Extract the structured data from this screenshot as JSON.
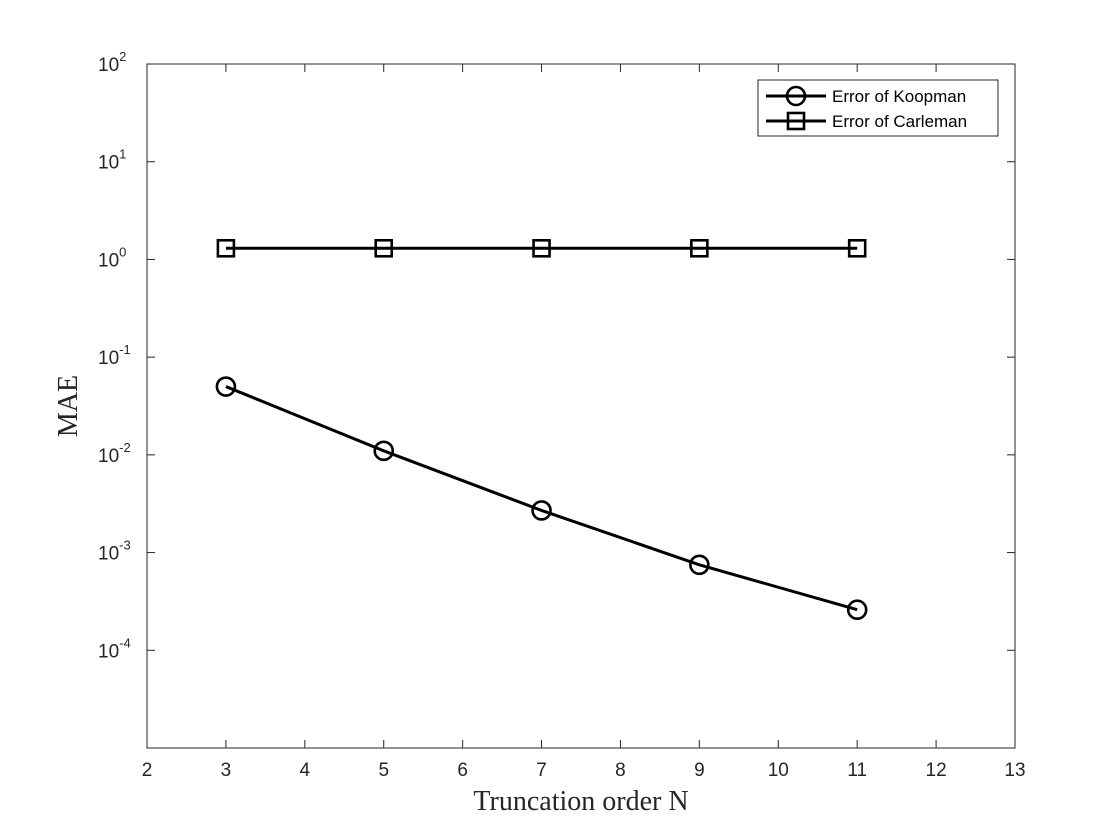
{
  "chart_data": {
    "type": "line",
    "title": "",
    "xlabel": "Truncation order N",
    "ylabel": "MAE",
    "xlim": [
      2,
      13
    ],
    "ylim": [
      1e-05,
      100
    ],
    "yscale": "log",
    "x_ticks": [
      2,
      3,
      4,
      5,
      6,
      7,
      8,
      9,
      10,
      11,
      12,
      13
    ],
    "y_ticks": [
      {
        "base": "10",
        "exp": "-4",
        "value": 0.0001
      },
      {
        "base": "10",
        "exp": "-3",
        "value": 0.001
      },
      {
        "base": "10",
        "exp": "-2",
        "value": 0.01
      },
      {
        "base": "10",
        "exp": "-1",
        "value": 0.1
      },
      {
        "base": "10",
        "exp": "0",
        "value": 1
      },
      {
        "base": "10",
        "exp": "1",
        "value": 10
      },
      {
        "base": "10",
        "exp": "2",
        "value": 100
      }
    ],
    "grid": false,
    "legend_position": "top-right",
    "x": [
      3,
      5,
      7,
      9,
      11
    ],
    "series": [
      {
        "name": "Error of Koopman",
        "marker": "circle",
        "color": "#000000",
        "values": [
          0.05,
          0.011,
          0.0027,
          0.00075,
          0.00026
        ]
      },
      {
        "name": "Error of Carleman",
        "marker": "square",
        "color": "#000000",
        "values": [
          1.3,
          1.3,
          1.3,
          1.3,
          1.3
        ]
      }
    ]
  }
}
